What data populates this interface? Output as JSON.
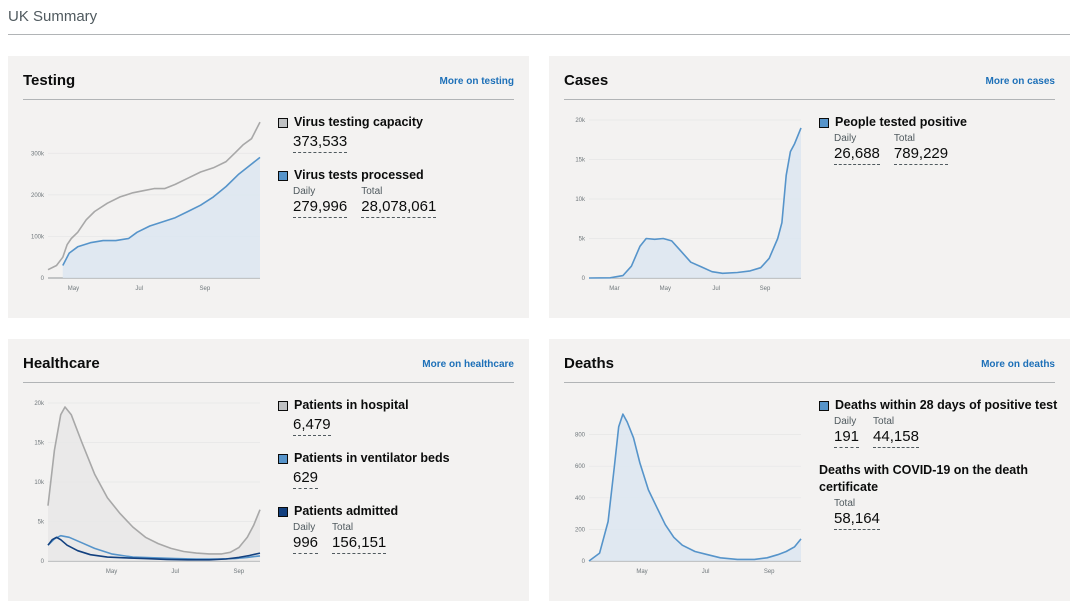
{
  "page_title": "UK Summary",
  "colors": {
    "gray": "#bfc1c3",
    "gray_line": "#a8a8a8",
    "blue": "#5694ca",
    "blue_fill": "#dce6f1",
    "navy": "#12407f"
  },
  "cards": [
    {
      "id": "testing",
      "title": "Testing",
      "link": "More on testing",
      "metrics": [
        {
          "label": "Virus testing capacity",
          "swatch": "gray",
          "values": [
            {
              "caption": "",
              "value": "373,533"
            }
          ]
        },
        {
          "label": "Virus tests processed",
          "swatch": "blue",
          "values": [
            {
              "caption": "Daily",
              "value": "279,996"
            },
            {
              "caption": "Total",
              "value": "28,078,061"
            }
          ]
        }
      ]
    },
    {
      "id": "cases",
      "title": "Cases",
      "link": "More on cases",
      "metrics": [
        {
          "label": "People tested positive",
          "swatch": "blue",
          "values": [
            {
              "caption": "Daily",
              "value": "26,688"
            },
            {
              "caption": "Total",
              "value": "789,229"
            }
          ]
        }
      ]
    },
    {
      "id": "healthcare",
      "title": "Healthcare",
      "link": "More on healthcare",
      "metrics": [
        {
          "label": "Patients in hospital",
          "swatch": "gray",
          "values": [
            {
              "caption": "",
              "value": "6,479"
            }
          ]
        },
        {
          "label": "Patients in ventilator beds",
          "swatch": "blue",
          "values": [
            {
              "caption": "",
              "value": "629"
            }
          ]
        },
        {
          "label": "Patients admitted",
          "swatch": "navy",
          "values": [
            {
              "caption": "Daily",
              "value": "996"
            },
            {
              "caption": "Total",
              "value": "156,151"
            }
          ]
        }
      ]
    },
    {
      "id": "deaths",
      "title": "Deaths",
      "link": "More on deaths",
      "metrics": [
        {
          "label": "Deaths within 28 days of positive test",
          "swatch": "blue",
          "values": [
            {
              "caption": "Daily",
              "value": "191"
            },
            {
              "caption": "Total",
              "value": "44,158"
            }
          ]
        },
        {
          "label": "Deaths with COVID-19 on the death certificate",
          "swatch": "none",
          "values": [
            {
              "caption": "Total",
              "value": "58,164"
            }
          ]
        }
      ]
    }
  ],
  "chart_data": [
    {
      "id": "testing",
      "type": "line",
      "x_range": [
        0,
        1
      ],
      "ylim": [
        0,
        380000
      ],
      "y_ticks": [
        {
          "label": "0",
          "value": 0
        },
        {
          "label": "100k",
          "value": 100000
        },
        {
          "label": "200k",
          "value": 200000
        },
        {
          "label": "300k",
          "value": 300000
        }
      ],
      "x_ticks": [
        {
          "label": "May",
          "value": 0.12
        },
        {
          "label": "Jul",
          "value": 0.43
        },
        {
          "label": "Sep",
          "value": 0.74
        }
      ],
      "series": [
        {
          "color": "gray",
          "fill": false,
          "points": [
            [
              0,
              20000
            ],
            [
              0.04,
              30000
            ],
            [
              0.07,
              50000
            ],
            [
              0.09,
              80000
            ],
            [
              0.11,
              95000
            ],
            [
              0.14,
              110000
            ],
            [
              0.18,
              140000
            ],
            [
              0.22,
              160000
            ],
            [
              0.28,
              180000
            ],
            [
              0.34,
              195000
            ],
            [
              0.4,
              205000
            ],
            [
              0.45,
              210000
            ],
            [
              0.5,
              215000
            ],
            [
              0.55,
              215000
            ],
            [
              0.6,
              225000
            ],
            [
              0.66,
              240000
            ],
            [
              0.72,
              255000
            ],
            [
              0.78,
              265000
            ],
            [
              0.84,
              280000
            ],
            [
              0.88,
              300000
            ],
            [
              0.92,
              320000
            ],
            [
              0.96,
              335000
            ],
            [
              1.0,
              375000
            ]
          ]
        },
        {
          "color": "blue",
          "fill": true,
          "points": [
            [
              0.07,
              30000
            ],
            [
              0.1,
              60000
            ],
            [
              0.14,
              75000
            ],
            [
              0.2,
              85000
            ],
            [
              0.26,
              90000
            ],
            [
              0.32,
              90000
            ],
            [
              0.38,
              95000
            ],
            [
              0.42,
              110000
            ],
            [
              0.48,
              125000
            ],
            [
              0.54,
              135000
            ],
            [
              0.6,
              145000
            ],
            [
              0.66,
              160000
            ],
            [
              0.72,
              175000
            ],
            [
              0.78,
              195000
            ],
            [
              0.84,
              220000
            ],
            [
              0.9,
              250000
            ],
            [
              0.95,
              270000
            ],
            [
              1.0,
              290000
            ]
          ]
        }
      ]
    },
    {
      "id": "cases",
      "type": "area",
      "x_range": [
        0,
        1
      ],
      "ylim": [
        0,
        20000
      ],
      "y_ticks": [
        {
          "label": "0",
          "value": 0
        },
        {
          "label": "5k",
          "value": 5000
        },
        {
          "label": "10k",
          "value": 10000
        },
        {
          "label": "15k",
          "value": 15000
        },
        {
          "label": "20k",
          "value": 20000
        }
      ],
      "x_ticks": [
        {
          "label": "Mar",
          "value": 0.12
        },
        {
          "label": "May",
          "value": 0.36
        },
        {
          "label": "Jul",
          "value": 0.6
        },
        {
          "label": "Sep",
          "value": 0.83
        }
      ],
      "series": [
        {
          "color": "blue",
          "fill": true,
          "points": [
            [
              0,
              0
            ],
            [
              0.1,
              20
            ],
            [
              0.16,
              300
            ],
            [
              0.2,
              1500
            ],
            [
              0.24,
              4000
            ],
            [
              0.27,
              5000
            ],
            [
              0.31,
              4900
            ],
            [
              0.35,
              5000
            ],
            [
              0.39,
              4700
            ],
            [
              0.43,
              3500
            ],
            [
              0.48,
              2000
            ],
            [
              0.53,
              1400
            ],
            [
              0.58,
              800
            ],
            [
              0.63,
              600
            ],
            [
              0.7,
              700
            ],
            [
              0.76,
              900
            ],
            [
              0.81,
              1300
            ],
            [
              0.85,
              2500
            ],
            [
              0.89,
              5000
            ],
            [
              0.91,
              7000
            ],
            [
              0.93,
              13000
            ],
            [
              0.95,
              16000
            ],
            [
              0.97,
              17000
            ],
            [
              1.0,
              19000
            ]
          ]
        }
      ]
    },
    {
      "id": "healthcare",
      "type": "line",
      "x_range": [
        0,
        1
      ],
      "ylim": [
        0,
        20000
      ],
      "y_ticks": [
        {
          "label": "0",
          "value": 0
        },
        {
          "label": "5k",
          "value": 5000
        },
        {
          "label": "10k",
          "value": 10000
        },
        {
          "label": "15k",
          "value": 15000
        },
        {
          "label": "20k",
          "value": 20000
        }
      ],
      "x_ticks": [
        {
          "label": "May",
          "value": 0.3
        },
        {
          "label": "Jul",
          "value": 0.6
        },
        {
          "label": "Sep",
          "value": 0.9
        }
      ],
      "series": [
        {
          "color": "gray",
          "fill": true,
          "points": [
            [
              0,
              7000
            ],
            [
              0.03,
              14000
            ],
            [
              0.06,
              18500
            ],
            [
              0.08,
              19500
            ],
            [
              0.11,
              18500
            ],
            [
              0.16,
              15000
            ],
            [
              0.22,
              11000
            ],
            [
              0.28,
              8000
            ],
            [
              0.34,
              6000
            ],
            [
              0.4,
              4300
            ],
            [
              0.46,
              3000
            ],
            [
              0.52,
              2200
            ],
            [
              0.58,
              1600
            ],
            [
              0.64,
              1200
            ],
            [
              0.7,
              1000
            ],
            [
              0.76,
              900
            ],
            [
              0.82,
              900
            ],
            [
              0.86,
              1100
            ],
            [
              0.9,
              1700
            ],
            [
              0.94,
              3000
            ],
            [
              0.97,
              4500
            ],
            [
              1.0,
              6500
            ]
          ]
        },
        {
          "color": "blue",
          "fill": false,
          "points": [
            [
              0,
              2000
            ],
            [
              0.03,
              2800
            ],
            [
              0.06,
              3200
            ],
            [
              0.1,
              3000
            ],
            [
              0.16,
              2300
            ],
            [
              0.22,
              1600
            ],
            [
              0.3,
              900
            ],
            [
              0.4,
              500
            ],
            [
              0.5,
              400
            ],
            [
              0.6,
              300
            ],
            [
              0.7,
              250
            ],
            [
              0.8,
              250
            ],
            [
              0.88,
              300
            ],
            [
              0.94,
              450
            ],
            [
              1.0,
              650
            ]
          ]
        },
        {
          "color": "navy",
          "fill": false,
          "points": [
            [
              0,
              2000
            ],
            [
              0.02,
              2700
            ],
            [
              0.04,
              3000
            ],
            [
              0.06,
              2700
            ],
            [
              0.09,
              2000
            ],
            [
              0.14,
              1300
            ],
            [
              0.2,
              800
            ],
            [
              0.28,
              500
            ],
            [
              0.36,
              400
            ],
            [
              0.46,
              300
            ],
            [
              0.56,
              200
            ],
            [
              0.66,
              150
            ],
            [
              0.76,
              150
            ],
            [
              0.84,
              250
            ],
            [
              0.9,
              450
            ],
            [
              0.95,
              700
            ],
            [
              1.0,
              1000
            ]
          ]
        }
      ]
    },
    {
      "id": "deaths",
      "type": "area",
      "x_range": [
        0,
        1
      ],
      "ylim": [
        0,
        1000
      ],
      "y_ticks": [
        {
          "label": "0",
          "value": 0
        },
        {
          "label": "200",
          "value": 200
        },
        {
          "label": "400",
          "value": 400
        },
        {
          "label": "600",
          "value": 600
        },
        {
          "label": "800",
          "value": 800
        }
      ],
      "x_ticks": [
        {
          "label": "May",
          "value": 0.25
        },
        {
          "label": "Jul",
          "value": 0.55
        },
        {
          "label": "Sep",
          "value": 0.85
        }
      ],
      "series": [
        {
          "color": "blue",
          "fill": true,
          "points": [
            [
              0,
              0
            ],
            [
              0.05,
              50
            ],
            [
              0.09,
              250
            ],
            [
              0.12,
              600
            ],
            [
              0.14,
              850
            ],
            [
              0.16,
              930
            ],
            [
              0.18,
              880
            ],
            [
              0.21,
              780
            ],
            [
              0.24,
              620
            ],
            [
              0.28,
              450
            ],
            [
              0.32,
              340
            ],
            [
              0.36,
              230
            ],
            [
              0.4,
              150
            ],
            [
              0.44,
              100
            ],
            [
              0.5,
              60
            ],
            [
              0.56,
              40
            ],
            [
              0.62,
              20
            ],
            [
              0.7,
              10
            ],
            [
              0.78,
              10
            ],
            [
              0.84,
              20
            ],
            [
              0.89,
              40
            ],
            [
              0.93,
              60
            ],
            [
              0.97,
              90
            ],
            [
              1.0,
              140
            ]
          ]
        }
      ]
    }
  ]
}
